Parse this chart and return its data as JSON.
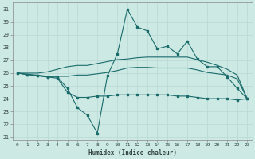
{
  "xlabel": "Humidex (Indice chaleur)",
  "xlim": [
    -0.5,
    23.5
  ],
  "ylim": [
    20.8,
    31.5
  ],
  "yticks": [
    21,
    22,
    23,
    24,
    25,
    26,
    27,
    28,
    29,
    30,
    31
  ],
  "xticks": [
    0,
    1,
    2,
    3,
    4,
    5,
    6,
    7,
    8,
    9,
    10,
    11,
    12,
    13,
    14,
    15,
    16,
    17,
    18,
    19,
    20,
    21,
    22,
    23
  ],
  "background_color": "#cce9e4",
  "grid_color": "#b8d8d4",
  "line_color": "#1a6b6b",
  "line1_y": [
    26.0,
    25.9,
    25.8,
    25.7,
    25.7,
    24.8,
    23.3,
    22.7,
    21.3,
    25.8,
    27.5,
    31.0,
    29.6,
    29.3,
    27.9,
    28.1,
    27.5,
    28.5,
    27.1,
    26.5,
    26.5,
    25.7,
    24.8,
    24.0
  ],
  "line2_y": [
    26.0,
    26.0,
    26.0,
    26.1,
    26.3,
    26.5,
    26.6,
    26.6,
    26.75,
    26.9,
    27.05,
    27.1,
    27.2,
    27.25,
    27.25,
    27.25,
    27.25,
    27.25,
    27.05,
    26.85,
    26.6,
    26.3,
    25.85,
    24.0
  ],
  "line3_y": [
    26.0,
    25.9,
    25.85,
    25.75,
    25.75,
    25.75,
    25.85,
    25.85,
    25.95,
    26.05,
    26.2,
    26.4,
    26.45,
    26.45,
    26.4,
    26.4,
    26.4,
    26.4,
    26.25,
    26.05,
    25.95,
    25.85,
    25.55,
    24.0
  ],
  "line4_y": [
    26.0,
    25.9,
    25.8,
    25.7,
    25.6,
    24.5,
    24.1,
    24.1,
    24.2,
    24.2,
    24.3,
    24.3,
    24.3,
    24.3,
    24.3,
    24.3,
    24.2,
    24.2,
    24.1,
    24.0,
    24.0,
    24.0,
    23.9,
    24.0
  ]
}
